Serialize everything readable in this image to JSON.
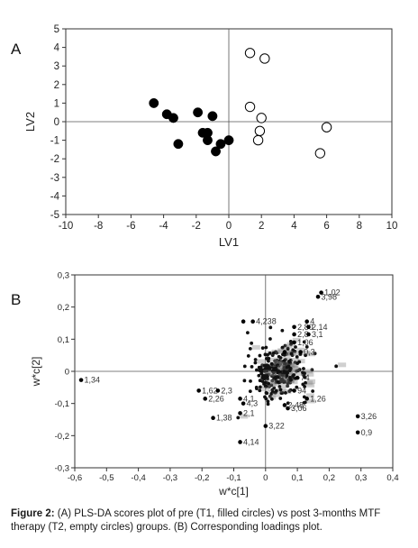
{
  "chart_data": [
    {
      "panel_label": "A",
      "type": "scatter",
      "xlabel": "LV1",
      "ylabel": "LV2",
      "xlim": [
        -10,
        10
      ],
      "ylim": [
        -5,
        5
      ],
      "xticks": [
        -10,
        -8,
        -6,
        -4,
        -2,
        0,
        2,
        4,
        6,
        8,
        10
      ],
      "yticks": [
        5,
        4,
        3,
        2,
        1,
        0,
        -1,
        -2,
        -3,
        -4,
        -5
      ],
      "reference_lines": {
        "x": 0,
        "y": 0
      },
      "series": [
        {
          "marker": "filled-circle",
          "color": "#000000",
          "points": [
            {
              "x": -4.6,
              "y": 1.0
            },
            {
              "x": -3.8,
              "y": 0.4
            },
            {
              "x": -3.4,
              "y": 0.2
            },
            {
              "x": -3.1,
              "y": -1.2
            },
            {
              "x": -1.9,
              "y": 0.5
            },
            {
              "x": -1.6,
              "y": -0.6
            },
            {
              "x": -1.3,
              "y": -0.6
            },
            {
              "x": -1.3,
              "y": -1.0
            },
            {
              "x": -1.0,
              "y": 0.3
            },
            {
              "x": -0.8,
              "y": -1.6
            },
            {
              "x": -0.5,
              "y": -1.2
            },
            {
              "x": 0.0,
              "y": -1.0
            }
          ]
        },
        {
          "marker": "empty-circle",
          "color": "#000000",
          "points": [
            {
              "x": 1.3,
              "y": 3.7
            },
            {
              "x": 2.2,
              "y": 3.4
            },
            {
              "x": 1.3,
              "y": 0.8
            },
            {
              "x": 2.0,
              "y": 0.2
            },
            {
              "x": 1.9,
              "y": -0.5
            },
            {
              "x": 1.8,
              "y": -1.0
            },
            {
              "x": 6.0,
              "y": -0.3
            },
            {
              "x": 5.6,
              "y": -1.7
            }
          ]
        }
      ]
    },
    {
      "panel_label": "B",
      "type": "scatter",
      "xlabel": "w*c[1]",
      "ylabel": "w*c[2]",
      "xlim": [
        -0.6,
        0.4
      ],
      "ylim": [
        -0.3,
        0.3
      ],
      "xticks": [
        "-0,6",
        "-0,5",
        "-0,4",
        "-0,3",
        "-0,2",
        "-0,1",
        "0",
        "0,1",
        "0,2",
        "0,3",
        "0,4"
      ],
      "yticks": [
        "0,3",
        "0,2",
        "0,1",
        "0",
        "-0,1",
        "-0,2",
        "-0,3"
      ],
      "reference_lines": {
        "x": 0,
        "y": 0
      },
      "points": [
        {
          "x": -0.58,
          "y": -0.027,
          "label": "1,34"
        },
        {
          "x": 0.175,
          "y": 0.245,
          "label": "1,02"
        },
        {
          "x": 0.165,
          "y": 0.232,
          "label": "3,98"
        },
        {
          "x": -0.07,
          "y": 0.155,
          "label": ""
        },
        {
          "x": -0.04,
          "y": 0.155,
          "label": "4,238"
        },
        {
          "x": 0.13,
          "y": 0.155,
          "label": "4"
        },
        {
          "x": 0.09,
          "y": 0.138,
          "label": "2,80"
        },
        {
          "x": 0.135,
          "y": 0.138,
          "label": "2,14"
        },
        {
          "x": 0.09,
          "y": 0.115,
          "label": "2,8"
        },
        {
          "x": 0.135,
          "y": 0.115,
          "label": "3,1"
        },
        {
          "x": 0.09,
          "y": 0.09,
          "label": "1,06"
        },
        {
          "x": 0.11,
          "y": 0.06,
          "label": "0,3"
        },
        {
          "x": 0.06,
          "y": 0.06,
          "label": ""
        },
        {
          "x": -0.21,
          "y": -0.06,
          "label": "1,62"
        },
        {
          "x": -0.15,
          "y": -0.06,
          "label": "2,3"
        },
        {
          "x": -0.19,
          "y": -0.085,
          "label": "2,26"
        },
        {
          "x": -0.08,
          "y": -0.085,
          "label": "4,1"
        },
        {
          "x": -0.07,
          "y": -0.1,
          "label": "4,3"
        },
        {
          "x": -0.08,
          "y": -0.13,
          "label": "2,1"
        },
        {
          "x": -0.165,
          "y": -0.145,
          "label": "1,38"
        },
        {
          "x": 0.0,
          "y": -0.17,
          "label": "3,22"
        },
        {
          "x": -0.08,
          "y": -0.22,
          "label": "4,14"
        },
        {
          "x": 0.13,
          "y": -0.085,
          "label": "1,26"
        },
        {
          "x": 0.07,
          "y": -0.115,
          "label": "3,06"
        },
        {
          "x": 0.06,
          "y": -0.105,
          "label": "2,48"
        },
        {
          "x": 0.09,
          "y": -0.06,
          "label": "94"
        },
        {
          "x": 0.1,
          "y": -0.02,
          "label": "74"
        },
        {
          "x": 0.29,
          "y": -0.14,
          "label": "3,26"
        },
        {
          "x": 0.29,
          "y": -0.19,
          "label": "0,9"
        }
      ],
      "cluster": {
        "x_center": 0.04,
        "y_center": 0.0,
        "x_spread": 0.085,
        "y_spread": 0.075,
        "count": 260,
        "labels_in_cluster": true
      }
    }
  ],
  "caption": {
    "bold": "Figure 2:",
    "text": " (A) PLS-DA scores plot of pre (T1, filled circles) vs post 3-months MTF therapy (T2, empty circles) groups.  (B) Corresponding loadings plot."
  }
}
